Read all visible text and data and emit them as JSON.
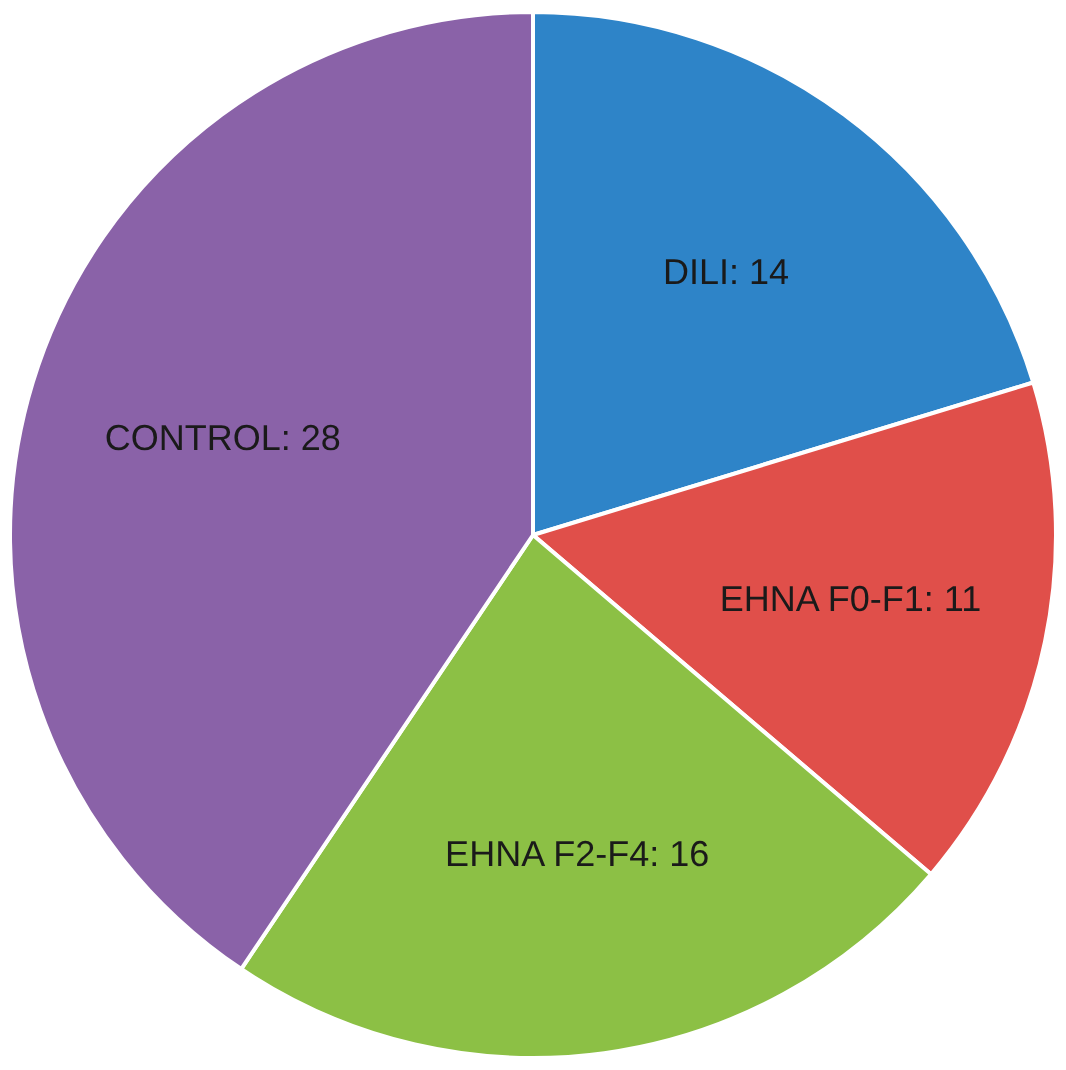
{
  "chart_data": {
    "type": "pie",
    "categories": [
      null,
      null,
      null,
      null
    ],
    "values": [
      14,
      11,
      16,
      28
    ],
    "value_labels": [
      "DILI: 14",
      "EHNA F0-F1: 11",
      "EHNA F2-F4: 16",
      "CONTROL: 28"
    ],
    "colors": [
      "#2e84c8",
      "#e04f4a",
      "#8cc045",
      "#8a62a8"
    ],
    "legend": false
  }
}
